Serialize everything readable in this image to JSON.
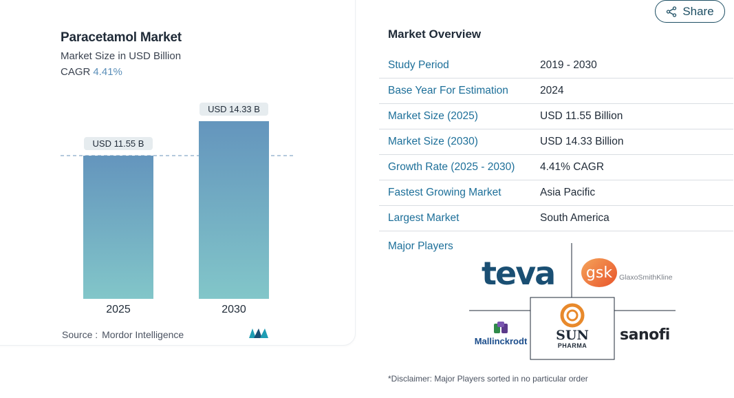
{
  "chart_card": {
    "title": "Paracetamol Market",
    "subtitle": "Market Size in USD Billion",
    "cagr_label": "CAGR",
    "cagr_value": "4.41%",
    "source_label": "Source :",
    "source_name": "Mordor Intelligence"
  },
  "chart_data": {
    "type": "bar",
    "categories": [
      "2025",
      "2030"
    ],
    "values": [
      11.55,
      14.33
    ],
    "data_labels": [
      "USD 11.55 B",
      "USD 14.33 B"
    ],
    "title": "Paracetamol Market",
    "subtitle": "Market Size in USD Billion",
    "ylim": [
      0,
      16
    ],
    "reference_line": 11.55,
    "grid": false,
    "bar_color_top": "#6495bd",
    "bar_color_bottom": "#82c6c9"
  },
  "share": {
    "label": "Share",
    "icon": "share-icon"
  },
  "overview": {
    "title": "Market Overview",
    "rows": [
      {
        "label": "Study Period",
        "value": "2019 - 2030"
      },
      {
        "label": "Base Year For Estimation",
        "value": "2024"
      },
      {
        "label": "Market Size (2025)",
        "value": "USD 11.55 Billion"
      },
      {
        "label": "Market Size (2030)",
        "value": "USD 14.33 Billion"
      },
      {
        "label": "Growth Rate (2025 - 2030)",
        "value": "4.41% CAGR"
      },
      {
        "label": "Fastest Growing Market",
        "value": "Asia Pacific"
      },
      {
        "label": "Largest Market",
        "value": "South America"
      }
    ],
    "players_title": "Major Players",
    "players": {
      "teva": "teva",
      "gsk_badge": "gsk",
      "gsk_text": "GlaxoSmithKline",
      "mallinckrodt": "Mallinckrodt",
      "sun": "SUN",
      "sun_sub": "PHARMA",
      "sanofi": "sanofi"
    },
    "disclaimer": "*Disclaimer: Major Players sorted in no particular order"
  },
  "colors": {
    "label_blue": "#1d6f99",
    "share_border": "#1d4e63",
    "cagr_accent": "#5b8fb9"
  }
}
